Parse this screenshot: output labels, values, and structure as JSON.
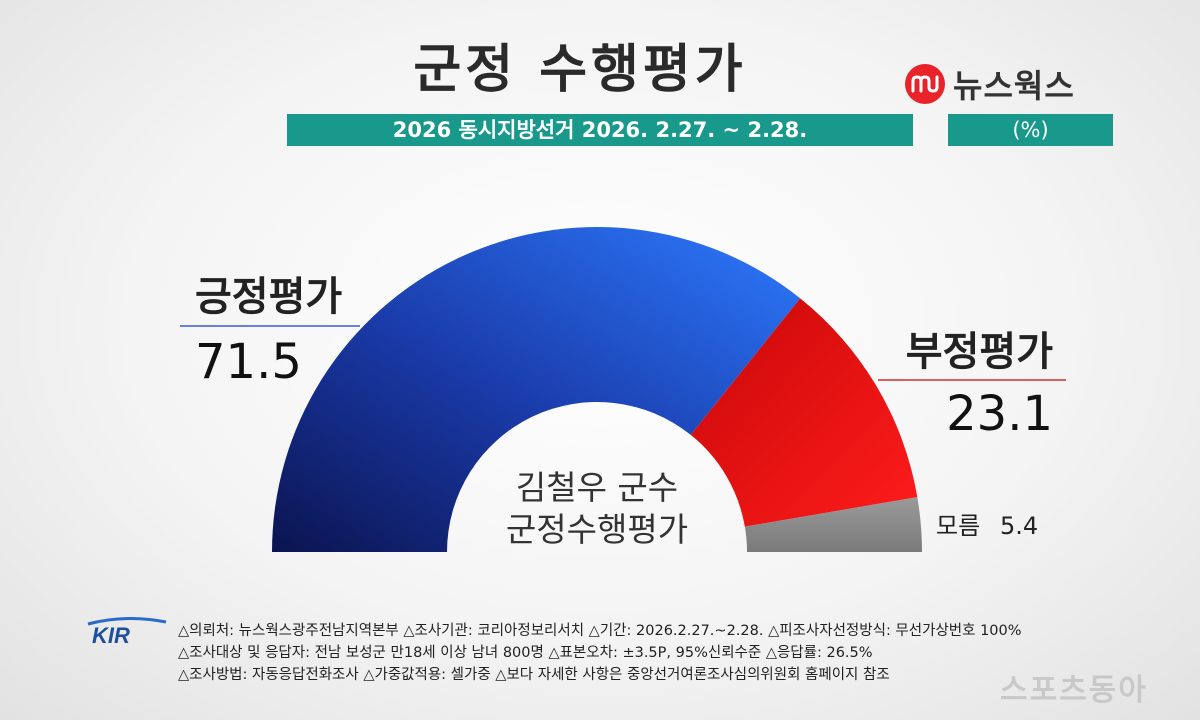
{
  "header": {
    "title": "군정 수행평가",
    "brand": "뉴스웍스",
    "brand_color": "#e8232a",
    "survey_label": "2026 동시지방선거 2026. 2.27. ~ 2.28.",
    "unit_label": "(%)",
    "bar_color": "#18998c"
  },
  "chart_data": {
    "type": "pie",
    "subtype": "semicircle-donut",
    "center_lines": [
      "김철우 군수",
      "군정수행평가"
    ],
    "categories": [
      "긍정평가",
      "부정평가",
      "모름"
    ],
    "values": [
      71.5,
      23.1,
      5.4
    ],
    "value_labels": [
      "71.5",
      "23.1",
      "5.4"
    ],
    "colors": [
      "#1f47b8",
      "#e80d0d",
      "#8a8a8a"
    ]
  },
  "footer": {
    "logo_text": "KIR",
    "lines": [
      "△의뢰처: 뉴스웍스광주전남지역본부   △조사기관: 코리아정보리서치   △기간: 2026.2.27.~2.28.  △피조사자선정방식: 무선가상번호 100%",
      "△조사대상 및 응답자: 전남 보성군 만18세 이상 남녀 800명   △표본오차: ±3.5P, 95%신뢰수준   △응답률: 26.5%",
      "△조사방법: 자동응답전화조사   △가중값적용: 셀가중  △보다 자세한 사항은 중앙선거여론조사심의위원회 홈페이지 참조"
    ],
    "watermark": "스포츠동아"
  }
}
